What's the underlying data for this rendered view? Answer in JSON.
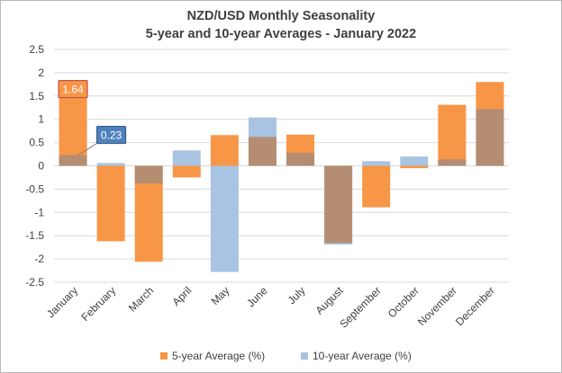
{
  "colors": {
    "five_year": "#F79646",
    "ten_year": "#A9C4E2",
    "overlap": "#B48D73",
    "grid": "#D9D9D9",
    "callout_five_fill": "#F79646",
    "callout_five_border": "#C0504D",
    "callout_ten_fill": "#4F81BD",
    "callout_ten_border": "#385D8A"
  },
  "chart_data": {
    "type": "bar",
    "title": "NZD/USD Monthly Seasonality",
    "subtitle": "5-year and 10-year Averages - January 2022",
    "xlabel": "",
    "ylabel": "",
    "ylim": [
      -2.5,
      2.5
    ],
    "y_ticks": [
      "2.5",
      "2",
      "1.5",
      "1",
      "0.5",
      "0",
      "-0.5",
      "-1",
      "-1.5",
      "-2",
      "-2.5"
    ],
    "grid": true,
    "legend_position": "bottom",
    "categories": [
      "January",
      "February",
      "March",
      "April",
      "May",
      "June",
      "July",
      "August",
      "September",
      "October",
      "November",
      "December"
    ],
    "series": [
      {
        "name": "5-year Average (%)",
        "values": [
          1.64,
          -1.62,
          -2.06,
          -0.25,
          0.66,
          0.62,
          0.67,
          -1.66,
          -0.89,
          -0.05,
          1.31,
          1.8
        ]
      },
      {
        "name": "10-year Average (%)",
        "values": [
          0.23,
          0.06,
          -0.38,
          0.33,
          -2.28,
          1.04,
          0.28,
          -1.69,
          0.1,
          0.2,
          0.14,
          1.22
        ]
      }
    ],
    "annotations": [
      {
        "category": "January",
        "series": "5-year Average (%)",
        "label": "1.64"
      },
      {
        "category": "January",
        "series": "10-year Average (%)",
        "label": "0.23"
      }
    ]
  }
}
